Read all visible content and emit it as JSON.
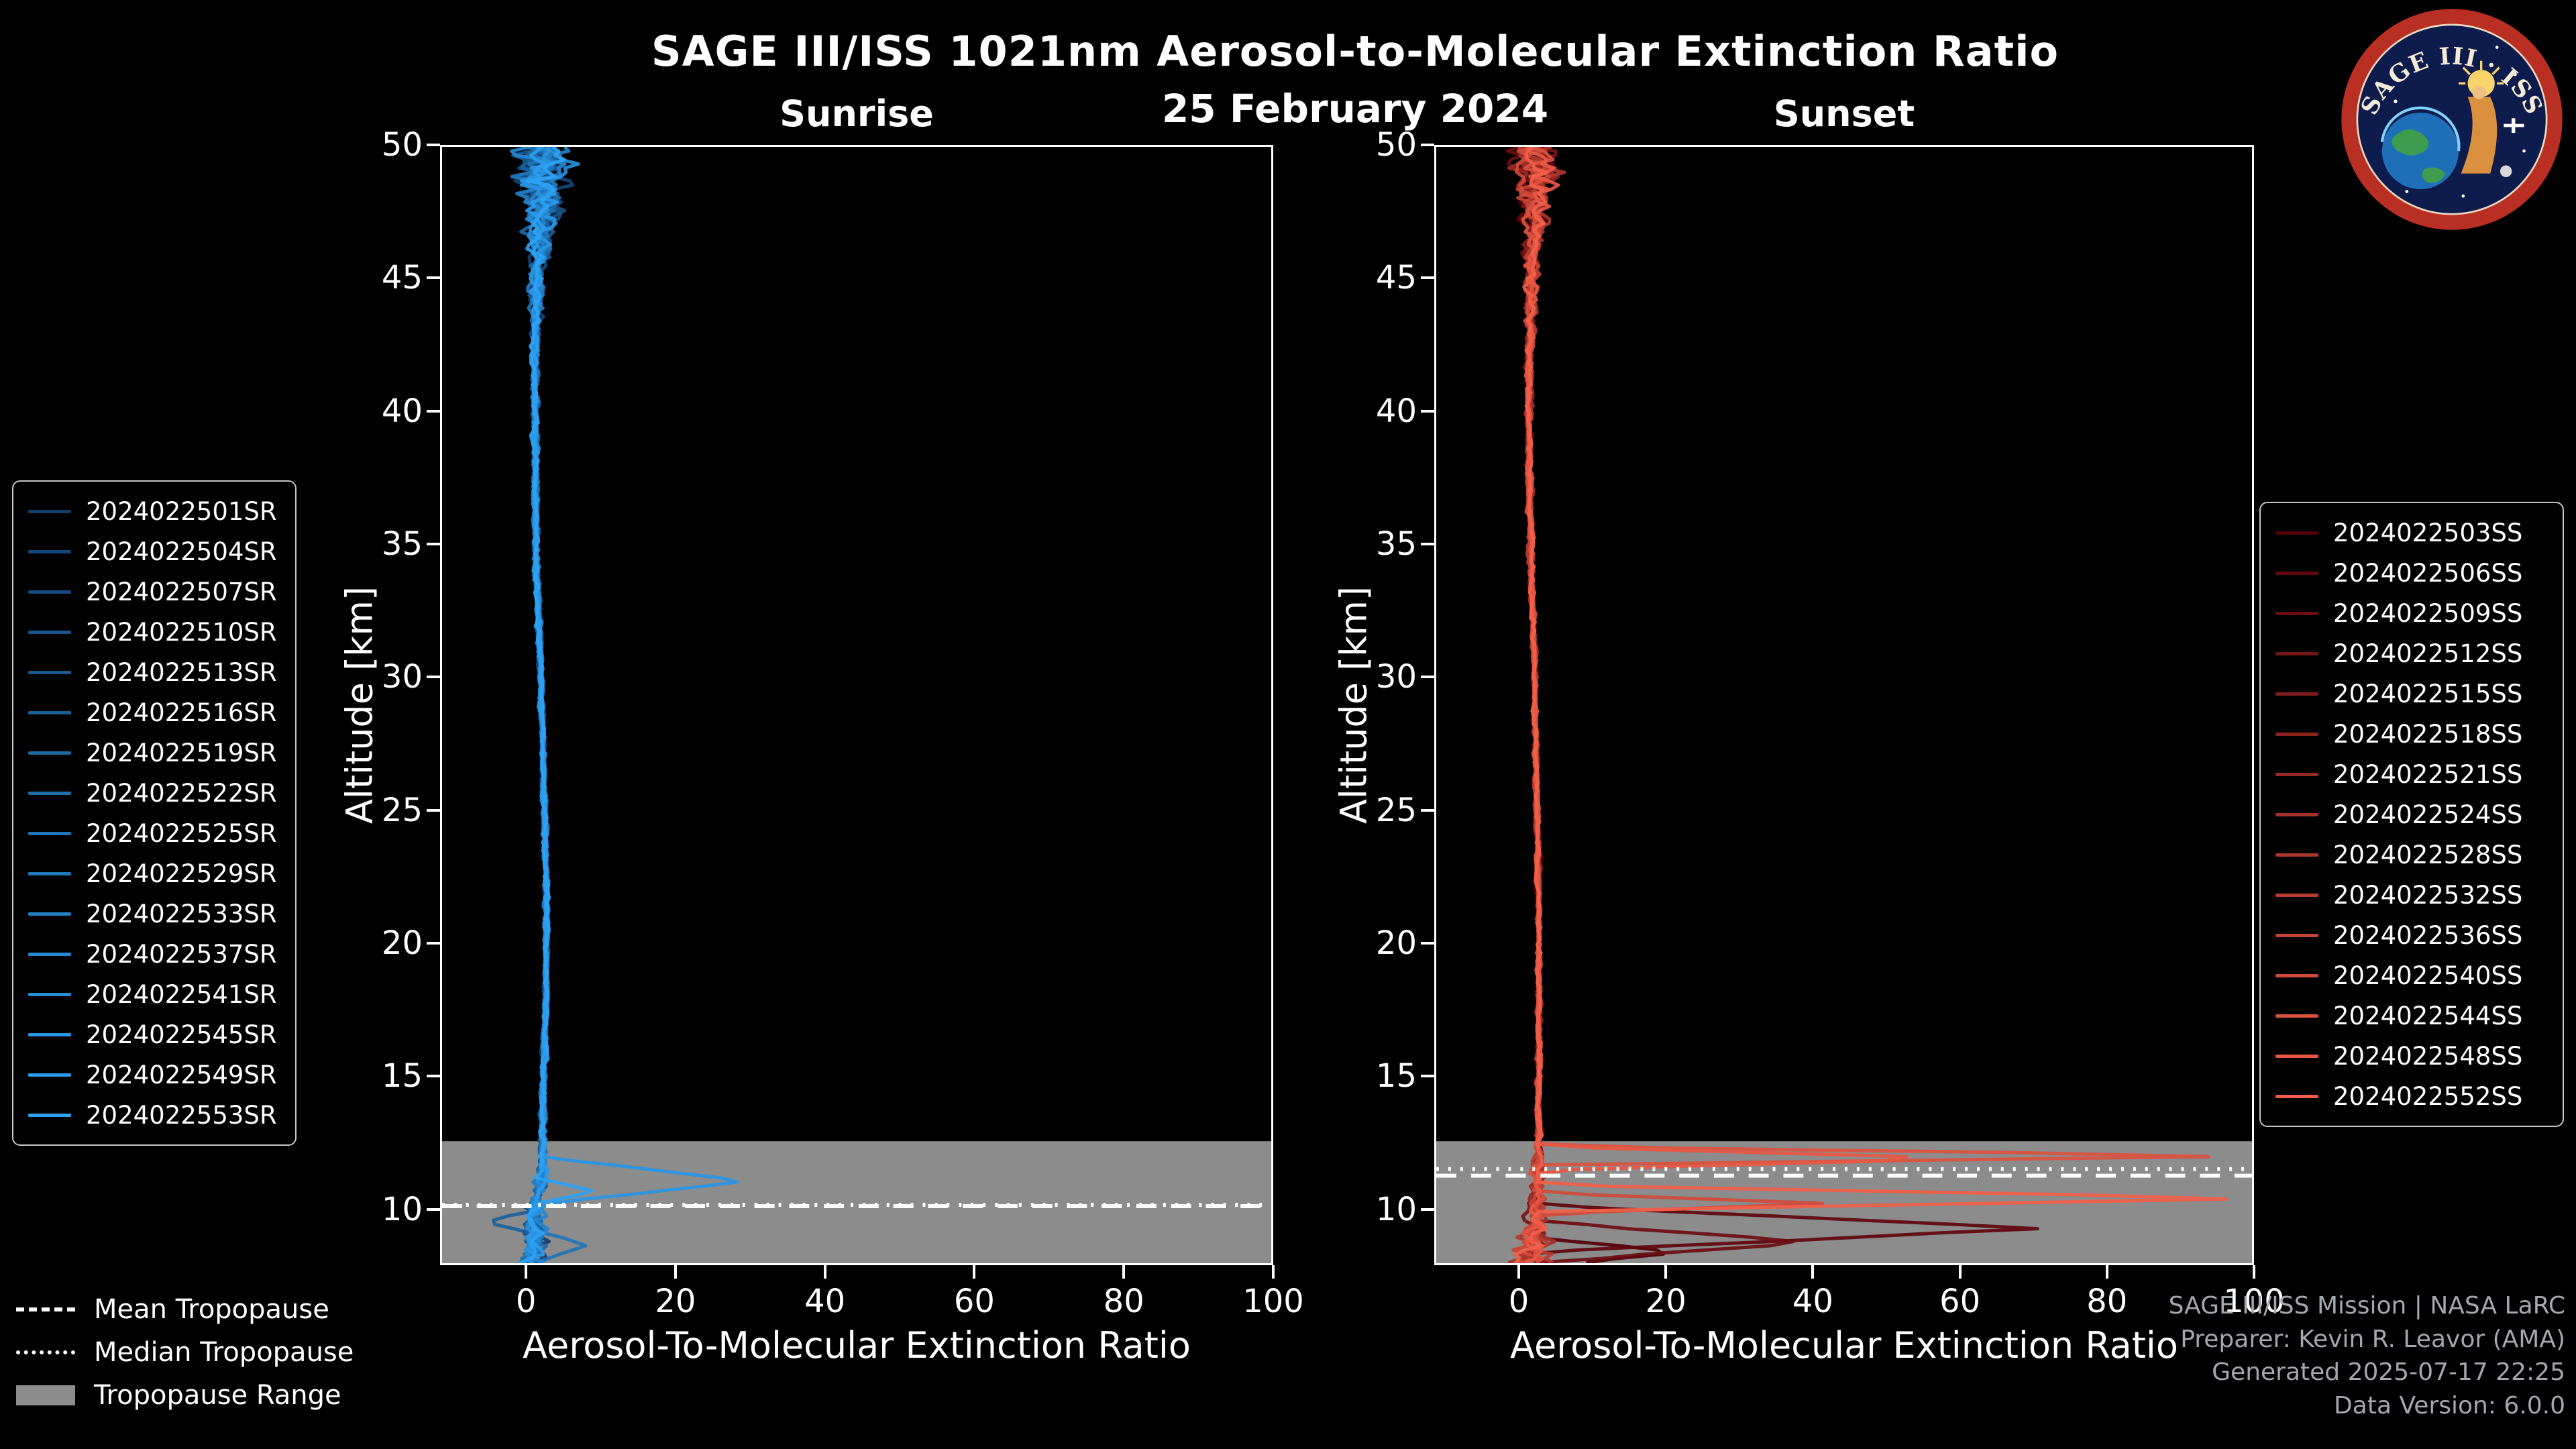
{
  "title": "SAGE III/ISS 1021nm Aerosol-to-Molecular Extinction Ratio",
  "date": "25 February 2024",
  "logo": {
    "text": "SAGE III · ISS"
  },
  "tropopause_legend": {
    "mean": "Mean Tropopause",
    "median": "Median Tropopause",
    "range": "Tropopause Range"
  },
  "footer": {
    "line1": "SAGE III/ISS Mission | NASA LaRC",
    "line2": "Preparer: Kevin R. Leavor (AMA)",
    "line3": "Generated 2025-07-17 22:25",
    "line4": "Data Version: 6.0.0"
  },
  "colors": {
    "background": "#000000",
    "axis": "#ffffff",
    "tropopause_band": "#8c8c8c",
    "tropopause_line": "#ffffff",
    "legend_border": "#c6c6c6",
    "footer_text": "#a2a8ad",
    "sunrise_ramp": [
      "#11406f",
      "#2da2f5"
    ],
    "sunset_ramp": [
      "#550008",
      "#f25f49"
    ]
  },
  "chart_data": [
    {
      "type": "line",
      "title": "Sunrise",
      "xlabel": "Aerosol-To-Molecular Extinction Ratio",
      "ylabel": "Altitude [km]",
      "xlim": [
        -11.5,
        100
      ],
      "ylim": [
        7.9,
        50
      ],
      "xticks": [
        0,
        20,
        40,
        60,
        80,
        100
      ],
      "yticks": [
        10,
        15,
        20,
        25,
        30,
        35,
        40,
        45,
        50
      ],
      "series": [
        "2024022501SR",
        "2024022504SR",
        "2024022507SR",
        "2024022510SR",
        "2024022513SR",
        "2024022516SR",
        "2024022519SR",
        "2024022522SR",
        "2024022525SR",
        "2024022529SR",
        "2024022533SR",
        "2024022537SR",
        "2024022541SR",
        "2024022545SR",
        "2024022549SR",
        "2024022553SR"
      ],
      "profile": {
        "altitudes": [
          7.9,
          9,
          10,
          10.7,
          11.3,
          12,
          14,
          18,
          22,
          26,
          30,
          34,
          38,
          42,
          45,
          47,
          48.5,
          50
        ],
        "ratio": [
          1,
          1,
          1,
          1.5,
          2,
          2,
          2,
          2.5,
          2.5,
          2.2,
          1.8,
          1.2,
          1,
          1,
          1.2,
          1.8,
          2,
          2
        ],
        "noise": [
          3,
          2,
          1.5,
          1.2,
          1,
          0.7,
          0.5,
          0.45,
          0.45,
          0.45,
          0.45,
          0.5,
          0.55,
          0.7,
          1.2,
          2.5,
          4,
          5.5
        ]
      },
      "anomalies": [
        {
          "series_index": 13,
          "altitude_km": 11.0,
          "peak_ratio": 28,
          "width_km": 0.9
        },
        {
          "series_index": 15,
          "altitude_km": 10.6,
          "peak_ratio": 8,
          "width_km": 0.5
        },
        {
          "series_index": 8,
          "altitude_km": 8.6,
          "peak_ratio": 7,
          "width_km": 0.6
        },
        {
          "series_index": 5,
          "altitude_km": 9.4,
          "peak_ratio": -6,
          "width_km": 0.5
        }
      ],
      "mean_tropopause_km": 10.05,
      "median_tropopause_km": 10.1,
      "tropopause_range_km": [
        7.9,
        12.5
      ]
    },
    {
      "type": "line",
      "title": "Sunset",
      "xlabel": "Aerosol-To-Molecular Extinction Ratio",
      "ylabel": "Altitude [km]",
      "xlim": [
        -11.5,
        100
      ],
      "ylim": [
        7.9,
        50
      ],
      "xticks": [
        0,
        20,
        40,
        60,
        80,
        100
      ],
      "yticks": [
        10,
        15,
        20,
        25,
        30,
        35,
        40,
        45,
        50
      ],
      "series": [
        "2024022503SS",
        "2024022506SS",
        "2024022509SS",
        "2024022512SS",
        "2024022515SS",
        "2024022518SS",
        "2024022521SS",
        "2024022524SS",
        "2024022528SS",
        "2024022532SS",
        "2024022536SS",
        "2024022540SS",
        "2024022544SS",
        "2024022548SS",
        "2024022552SS"
      ],
      "profile": {
        "altitudes": [
          7.9,
          9,
          10,
          11,
          12,
          14,
          18,
          22,
          26,
          30,
          34,
          38,
          42,
          45,
          47,
          48.5,
          50
        ],
        "ratio": [
          2,
          2,
          2,
          2.5,
          2.5,
          2.5,
          2.5,
          2.5,
          2.2,
          2,
          1.5,
          1.2,
          1.2,
          1.5,
          2,
          2.2,
          2.2
        ],
        "noise": [
          4,
          3,
          1.8,
          1.2,
          0.8,
          0.5,
          0.45,
          0.45,
          0.45,
          0.45,
          0.5,
          0.55,
          0.7,
          1.2,
          2.2,
          3.5,
          5
        ]
      },
      "anomalies": [
        {
          "series_index": 14,
          "altitude_km": 10.35,
          "peak_ratio": 100,
          "width_km": 0.5
        },
        {
          "series_index": 13,
          "altitude_km": 11.85,
          "peak_ratio": 60,
          "width_km": 0.45
        },
        {
          "series_index": 12,
          "altitude_km": 11.95,
          "peak_ratio": 100,
          "width_km": 0.35
        },
        {
          "series_index": 11,
          "altitude_km": 10.15,
          "peak_ratio": 40,
          "width_km": 0.4
        },
        {
          "series_index": 1,
          "altitude_km": 9.2,
          "peak_ratio": 68,
          "width_km": 0.9
        },
        {
          "series_index": 2,
          "altitude_km": 8.7,
          "peak_ratio": 36,
          "width_km": 0.8
        },
        {
          "series_index": 0,
          "altitude_km": 8.3,
          "peak_ratio": 20,
          "width_km": 0.6
        }
      ],
      "mean_tropopause_km": 11.2,
      "median_tropopause_km": 11.45,
      "tropopause_range_km": [
        7.9,
        12.5
      ]
    }
  ]
}
